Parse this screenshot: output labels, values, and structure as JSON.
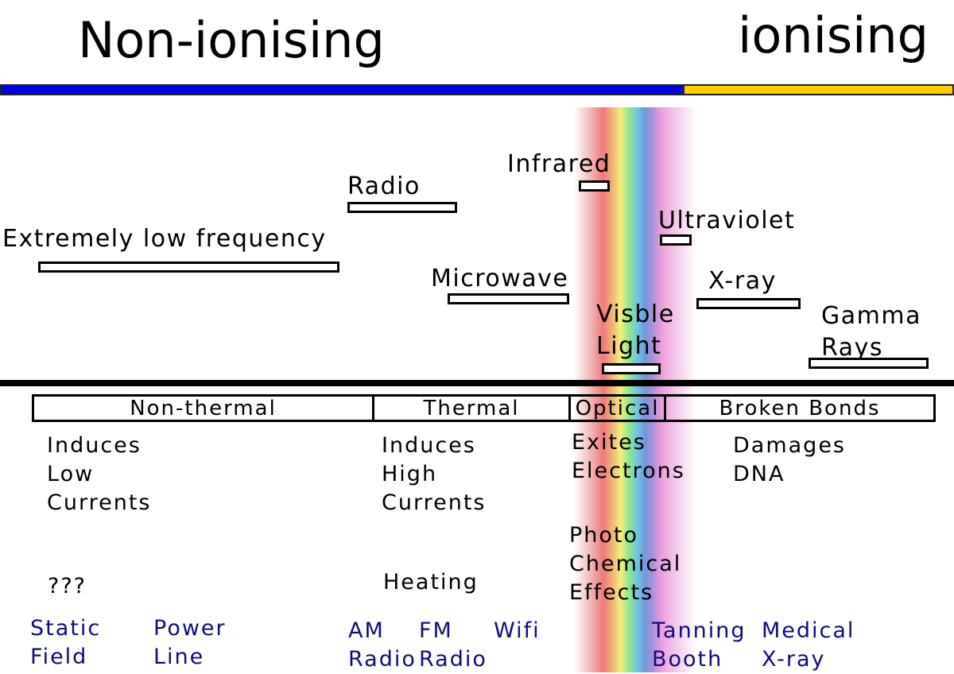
{
  "headers": {
    "non_ionising": "Non-ionising",
    "ionising": "ionising"
  },
  "colors": {
    "non_ionising_bar": "#0000e6",
    "ionising_bar": "#ffcc00",
    "example_text": "#0d0d80"
  },
  "bands": {
    "elf": "Extremely low frequency",
    "radio": "Radio",
    "microwave": "Microwave",
    "infrared": "Infrared",
    "visible": "Visble\nLight",
    "ultraviolet": "Ultraviolet",
    "xray": "X-ray",
    "gamma": "Gamma\nRays"
  },
  "categories": {
    "non_thermal": "Non-thermal",
    "thermal": "Thermal",
    "optical": "Optical",
    "broken_bonds": "Broken Bonds"
  },
  "effects": {
    "low_currents": "Induces\nLow\nCurrents",
    "high_currents": "Induces\nHigh\nCurrents",
    "excites": "Exites\nElectrons",
    "dna": "Damages\nDNA",
    "unknown": "???",
    "heating": "Heating",
    "photochem": "Photo\nChemical\nEffects"
  },
  "examples": {
    "static": "Static\nField",
    "power": "Power\nLine",
    "am": "AM\nRadio",
    "fm": "FM\nRadio",
    "wifi": "Wifi",
    "tanning": "Tanning\nBooth",
    "medical": "Medical\nX-ray"
  }
}
